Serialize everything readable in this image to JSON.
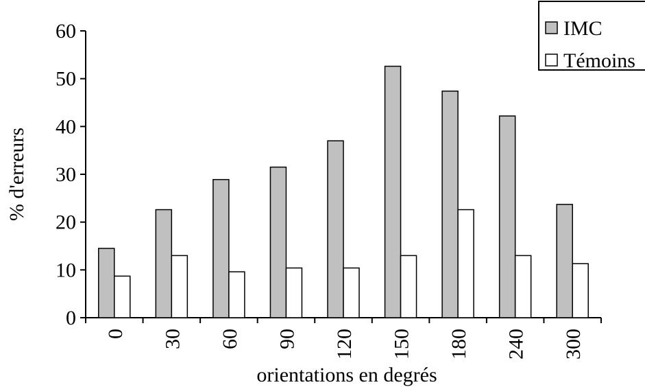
{
  "chart_data": {
    "type": "bar",
    "categories": [
      "0",
      "30",
      "60",
      "90",
      "120",
      "150",
      "180",
      "240",
      "300"
    ],
    "series": [
      {
        "name": "IMC",
        "values": [
          14.5,
          22.6,
          28.9,
          31.5,
          37.0,
          52.6,
          47.4,
          42.2,
          23.7
        ],
        "color": "#c0c0c0"
      },
      {
        "name": "Témoins",
        "values": [
          8.7,
          13.0,
          9.6,
          10.4,
          10.4,
          13.0,
          22.6,
          13.0,
          11.3
        ],
        "color": "#ffffff"
      }
    ],
    "title": "",
    "xlabel": "orientations en degrés",
    "ylabel": "% d'erreurs",
    "ylim": [
      0,
      60
    ],
    "yticks": [
      "0",
      "10",
      "20",
      "30",
      "40",
      "50",
      "60"
    ],
    "grid": false,
    "legend_position": "top-right"
  }
}
